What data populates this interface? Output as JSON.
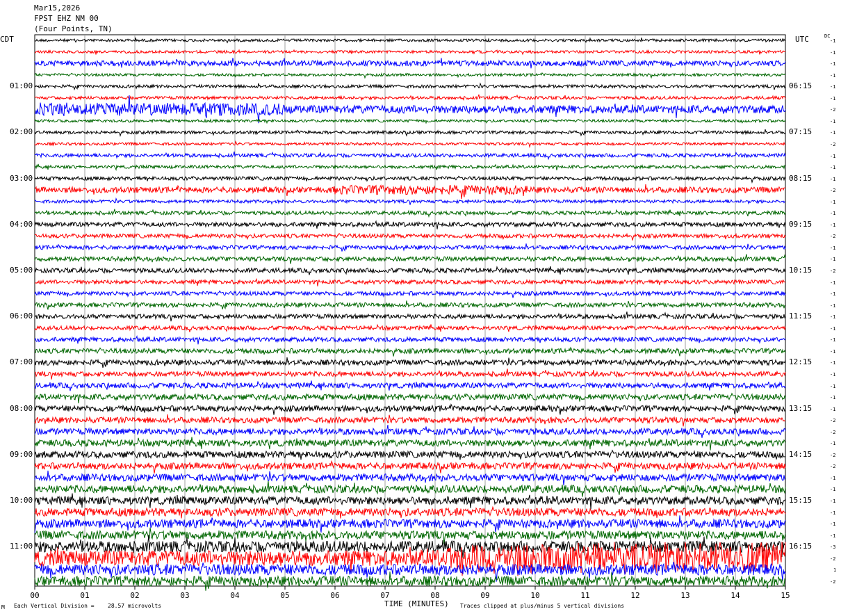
{
  "header": {
    "date": "Mar15,2026",
    "station": "FPST EHZ NM 00",
    "location": "(Four Points, TN)"
  },
  "left_timezone": "CDT",
  "right_timezone": "UTC",
  "dc_label": "DC",
  "footer": {
    "scale_prefix": "Each Vertical Division =",
    "scale_value": "28.57 microvolts",
    "xaxis_title": "TIME (MINUTES)",
    "clip_note": "Traces clipped at plus/minus 5 vertical divisions",
    "corner_mark": "M"
  },
  "colors": {
    "trace_cycle": [
      "#000000",
      "#ff0000",
      "#0000ff",
      "#006600"
    ],
    "grid": "#a0a0a0"
  },
  "chart_data": {
    "type": "line",
    "description_type": "helicorder",
    "x_ticks": [
      "00",
      "01",
      "02",
      "03",
      "04",
      "05",
      "06",
      "07",
      "08",
      "09",
      "10",
      "11",
      "12",
      "13",
      "14",
      "15"
    ],
    "xlim": [
      0,
      15
    ],
    "left_hour_labels": [
      "01:00",
      "02:00",
      "03:00",
      "04:00",
      "05:00",
      "06:00",
      "07:00",
      "08:00",
      "09:00",
      "10:00",
      "11:00"
    ],
    "right_hour_labels": [
      "06:15",
      "07:15",
      "08:15",
      "09:15",
      "10:15",
      "11:15",
      "12:15",
      "13:15",
      "14:15",
      "15:15",
      "16:15"
    ],
    "trace_count": 48,
    "dc_offsets": [
      "-1",
      "-1",
      "-1",
      "-1",
      "-1",
      "-1",
      "-2",
      "-1",
      "-1",
      "-2",
      "-1",
      "-1",
      "-1",
      "-2",
      "-1",
      "-1",
      "-1",
      "-2",
      "-1",
      "-1",
      "-2",
      "-1",
      "-1",
      "-1",
      "-1",
      "-1",
      "-1",
      "-1",
      "-1",
      "-1",
      "-1",
      "-1",
      "-1",
      "-2",
      "-2",
      "-1",
      "-2",
      "-2",
      "-1",
      "-1",
      "-1",
      "-1",
      "-1",
      "-1",
      "-3",
      "-2",
      "1",
      "-2"
    ],
    "trace_amplitude_divisions": [
      0.6,
      0.6,
      1.2,
      0.6,
      0.7,
      0.7,
      1.8,
      0.6,
      0.7,
      0.6,
      0.8,
      0.7,
      0.8,
      1.3,
      0.7,
      0.8,
      1.0,
      0.9,
      0.9,
      1.0,
      1.0,
      0.9,
      0.9,
      1.0,
      1.0,
      0.9,
      1.0,
      1.1,
      1.2,
      1.1,
      1.2,
      1.3,
      1.3,
      1.3,
      1.4,
      1.5,
      1.5,
      1.5,
      1.6,
      1.7,
      1.8,
      1.8,
      1.9,
      1.9,
      2.5,
      3.5,
      2.5,
      2.2
    ]
  }
}
